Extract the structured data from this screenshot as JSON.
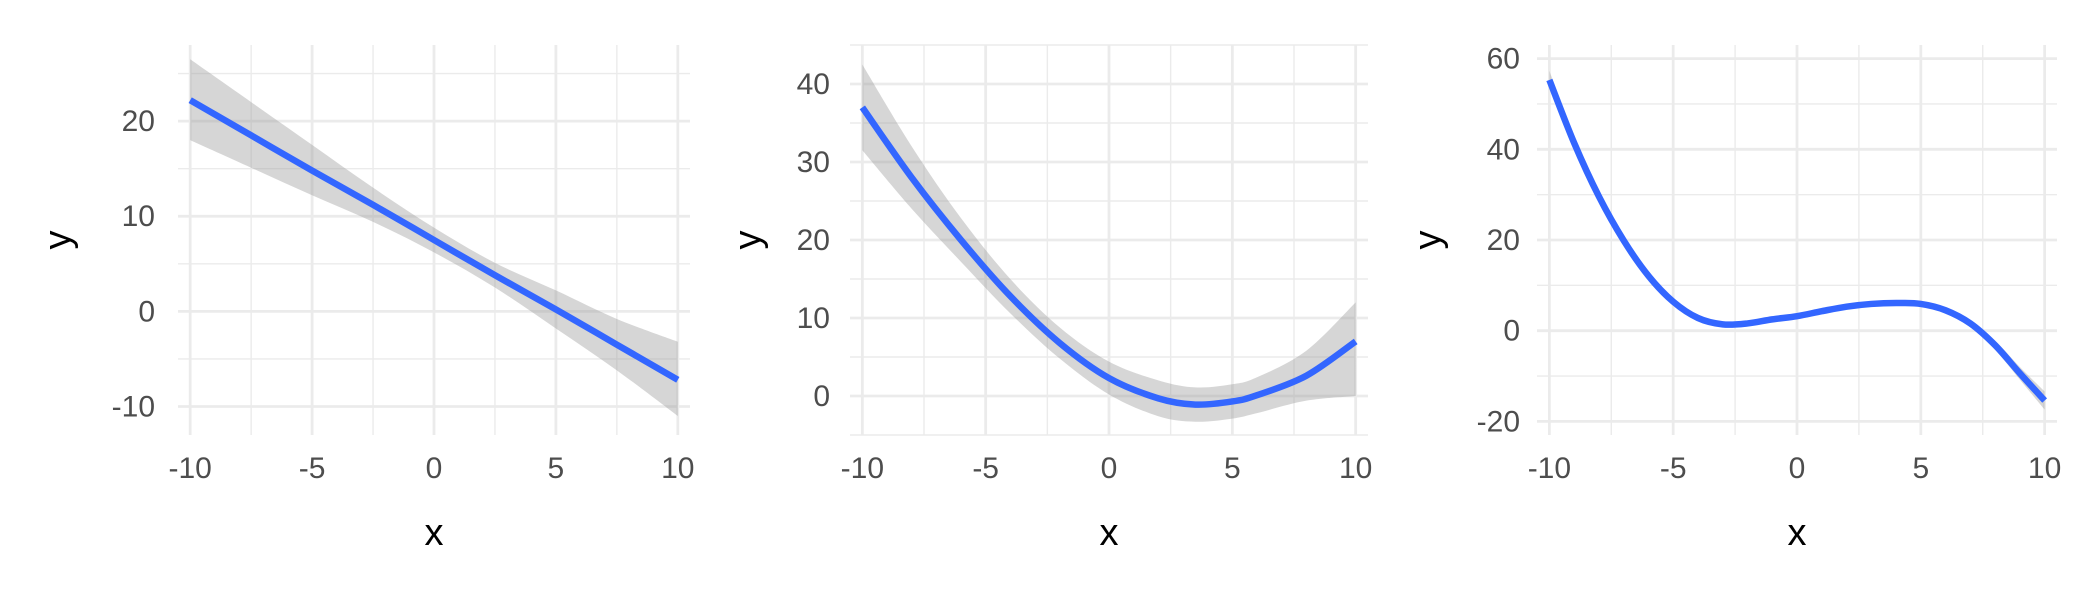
{
  "chart_data": [
    {
      "type": "line",
      "xlabel": "x",
      "ylabel": "y",
      "xlim": [
        -10.5,
        10.5
      ],
      "ylim": [
        -13,
        28
      ],
      "x_ticks": [
        -10,
        -5,
        0,
        5,
        10
      ],
      "x_tick_labels": [
        "-10",
        "-5",
        "0",
        "5",
        "10"
      ],
      "y_ticks": [
        -10,
        0,
        10,
        20
      ],
      "y_tick_labels": [
        "-10",
        "0",
        "10",
        "20"
      ],
      "grid": true,
      "colors": {
        "line": "#3366FF",
        "band": "#999999"
      },
      "series": [
        {
          "x": [
            -10,
            -7.5,
            -5,
            -2.5,
            0,
            2.5,
            5,
            7.5,
            10
          ],
          "y": [
            22.2,
            18.5,
            14.8,
            11.2,
            7.5,
            3.8,
            0.2,
            -3.5,
            -7.2
          ],
          "lower": [
            18.0,
            15.1,
            12.2,
            9.4,
            6.2,
            2.5,
            -1.8,
            -6.2,
            -11.0
          ],
          "upper": [
            26.5,
            22.0,
            17.5,
            13.0,
            8.8,
            5.1,
            2.2,
            -0.8,
            -3.2
          ]
        }
      ]
    },
    {
      "type": "line",
      "xlabel": "x",
      "ylabel": "y",
      "xlim": [
        -10.5,
        10.5
      ],
      "ylim": [
        -5,
        45
      ],
      "x_ticks": [
        -10,
        -5,
        0,
        5,
        10
      ],
      "x_tick_labels": [
        "-10",
        "-5",
        "0",
        "5",
        "10"
      ],
      "y_ticks": [
        0,
        10,
        20,
        30,
        40
      ],
      "y_tick_labels": [
        "0",
        "10",
        "20",
        "30",
        "40"
      ],
      "grid": true,
      "colors": {
        "line": "#3366FF",
        "band": "#999999"
      },
      "series": [
        {
          "x": [
            -10,
            -8,
            -6,
            -4,
            -2,
            0,
            2,
            3.5,
            5,
            6,
            8,
            10
          ],
          "y": [
            37.0,
            28.0,
            20.0,
            12.8,
            6.8,
            2.3,
            -0.3,
            -1.1,
            -0.7,
            0.1,
            2.6,
            7.0
          ],
          "lower": [
            31.5,
            24.0,
            17.2,
            10.6,
            4.8,
            0.2,
            -2.6,
            -3.3,
            -2.9,
            -2.2,
            -0.6,
            0.0
          ],
          "upper": [
            42.5,
            32.0,
            22.8,
            15.0,
            8.8,
            4.4,
            2.0,
            1.1,
            1.5,
            2.4,
            5.8,
            12.0
          ]
        }
      ]
    },
    {
      "type": "line",
      "xlabel": "x",
      "ylabel": "y",
      "xlim": [
        -10.5,
        10.5
      ],
      "ylim": [
        -23,
        63
      ],
      "x_ticks": [
        -10,
        -5,
        0,
        5,
        10
      ],
      "x_tick_labels": [
        "-10",
        "-5",
        "0",
        "5",
        "10"
      ],
      "y_ticks": [
        -20,
        0,
        20,
        40,
        60
      ],
      "y_tick_labels": [
        "-20",
        "0",
        "20",
        "40",
        "60"
      ],
      "grid": true,
      "colors": {
        "line": "#3366FF",
        "band": "#999999"
      },
      "series": [
        {
          "x": [
            -10,
            -9,
            -8,
            -7,
            -6,
            -5,
            -4,
            -3,
            -2,
            -1,
            0,
            1,
            2,
            3,
            4,
            5,
            6,
            7,
            8,
            9,
            10
          ],
          "y": [
            55.3,
            41.4,
            29.6,
            19.9,
            12.1,
            6.4,
            2.8,
            1.4,
            1.6,
            2.5,
            3.2,
            4.3,
            5.3,
            5.9,
            6.1,
            5.9,
            4.5,
            1.6,
            -3.2,
            -9.4,
            -15.4
          ],
          "lower": [
            53.3,
            40.0,
            28.6,
            19.1,
            11.5,
            5.8,
            2.2,
            0.8,
            1.0,
            1.9,
            2.6,
            3.7,
            4.7,
            5.3,
            5.5,
            5.3,
            3.9,
            0.8,
            -4.2,
            -10.8,
            -17.4
          ],
          "upper": [
            57.3,
            42.8,
            30.6,
            20.7,
            12.7,
            7.0,
            3.4,
            2.0,
            2.2,
            3.1,
            3.8,
            4.9,
            5.9,
            6.5,
            6.7,
            6.5,
            5.1,
            2.4,
            -2.2,
            -8.0,
            -13.4
          ]
        }
      ]
    }
  ]
}
